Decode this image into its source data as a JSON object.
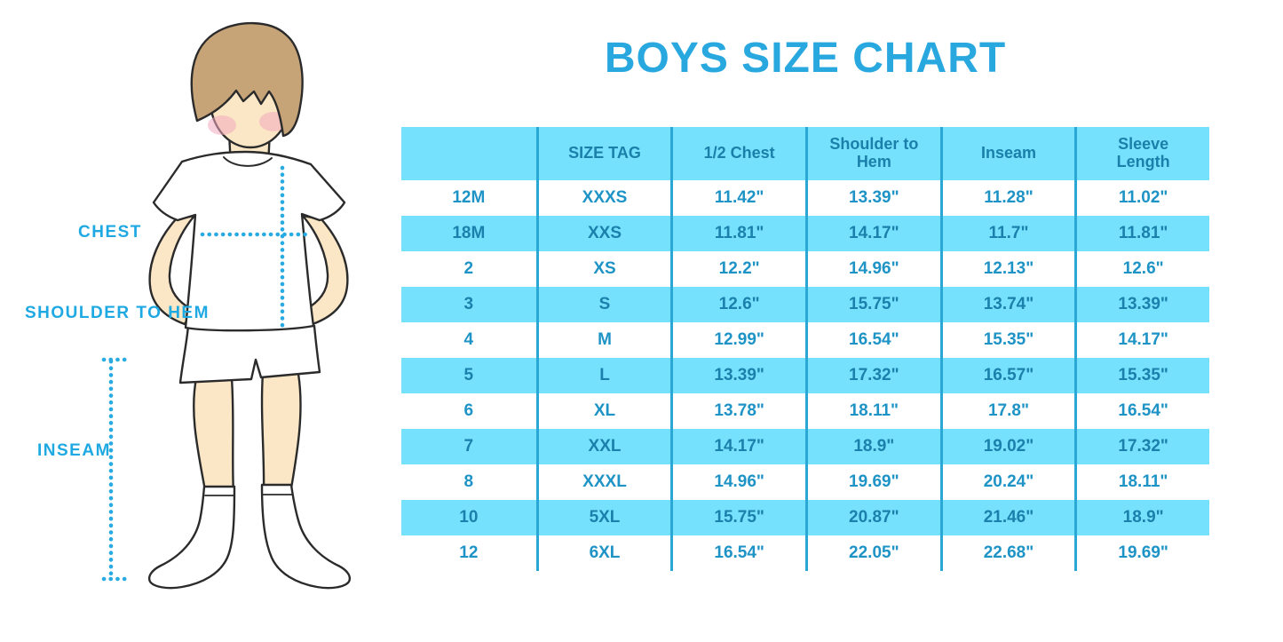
{
  "title": "BOYS SIZE CHART",
  "colors": {
    "accent": "#29A8E0",
    "table_bg": "#76E1FD",
    "divider": "#2BA7D6",
    "cell_text": "#1E93C6",
    "cell_text_alt": "#1B80AB",
    "header_text": "#1A7FA9",
    "label_text": "#1FA9E2"
  },
  "figure": {
    "labels": {
      "chest": "CHEST",
      "shoulder_to_hem": "SHOULDER TO HEM",
      "inseam": "INSEAM"
    }
  },
  "size_chart": {
    "columns": [
      "",
      "SIZE TAG",
      "1/2 Chest",
      "Shoulder to Hem",
      "Inseam",
      "Sleeve Length"
    ],
    "rows": [
      [
        "12M",
        "XXXS",
        "11.42\"",
        "13.39\"",
        "11.28\"",
        "11.02\""
      ],
      [
        "18M",
        "XXS",
        "11.81\"",
        "14.17\"",
        "11.7\"",
        "11.81\""
      ],
      [
        "2",
        "XS",
        "12.2\"",
        "14.96\"",
        "12.13\"",
        "12.6\""
      ],
      [
        "3",
        "S",
        "12.6\"",
        "15.75\"",
        "13.74\"",
        "13.39\""
      ],
      [
        "4",
        "M",
        "12.99\"",
        "16.54\"",
        "15.35\"",
        "14.17\""
      ],
      [
        "5",
        "L",
        "13.39\"",
        "17.32\"",
        "16.57\"",
        "15.35\""
      ],
      [
        "6",
        "XL",
        "13.78\"",
        "18.11\"",
        "17.8\"",
        "16.54\""
      ],
      [
        "7",
        "XXL",
        "14.17\"",
        "18.9\"",
        "19.02\"",
        "17.32\""
      ],
      [
        "8",
        "XXXL",
        "14.96\"",
        "19.69\"",
        "20.24\"",
        "18.11\""
      ],
      [
        "10",
        "5XL",
        "15.75\"",
        "20.87\"",
        "21.46\"",
        "18.9\""
      ],
      [
        "12",
        "6XL",
        "16.54\"",
        "22.05\"",
        "22.68\"",
        "19.69\""
      ]
    ]
  }
}
